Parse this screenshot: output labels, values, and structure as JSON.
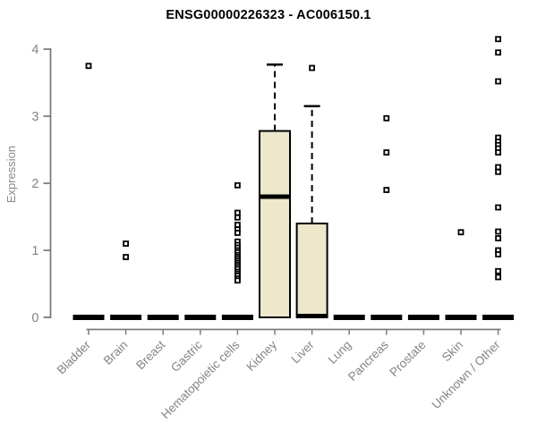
{
  "chart_data": {
    "type": "boxplot",
    "title": "ENSG00000226323 - AC006150.1",
    "ylabel": "Expression",
    "xlabel": "",
    "ylim": [
      0,
      4
    ],
    "yticks": [
      0,
      1,
      2,
      3,
      4
    ],
    "grid": false,
    "legend": "none",
    "categories": [
      "Bladder",
      "Brain",
      "Breast",
      "Gastric",
      "Hematopoietic cells",
      "Kidney",
      "Liver",
      "Lung",
      "Pancreas",
      "Prostate",
      "Skin",
      "Unknown / Other"
    ],
    "boxes": [
      {
        "category": "Bladder",
        "q1": 0,
        "median": 0,
        "q3": 0,
        "whisker_low": 0,
        "whisker_high": 0,
        "outliers": [
          3.75
        ]
      },
      {
        "category": "Brain",
        "q1": 0,
        "median": 0,
        "q3": 0,
        "whisker_low": 0,
        "whisker_high": 0,
        "outliers": [
          1.1,
          0.9
        ]
      },
      {
        "category": "Breast",
        "q1": 0,
        "median": 0,
        "q3": 0,
        "whisker_low": 0,
        "whisker_high": 0,
        "outliers": []
      },
      {
        "category": "Gastric",
        "q1": 0,
        "median": 0,
        "q3": 0,
        "whisker_low": 0,
        "whisker_high": 0,
        "outliers": []
      },
      {
        "category": "Hematopoietic cells",
        "q1": 0,
        "median": 0,
        "q3": 0,
        "whisker_low": 0,
        "whisker_high": 0,
        "outliers": [
          1.97,
          1.56,
          1.49,
          1.38,
          1.31,
          1.26,
          1.13,
          1.08,
          1.04,
          1.0,
          0.97,
          0.93,
          0.9,
          0.87,
          0.84,
          0.81,
          0.78,
          0.75,
          0.72,
          0.68,
          0.65,
          0.62,
          0.58,
          0.55
        ]
      },
      {
        "category": "Kidney",
        "q1": 0,
        "median": 1.8,
        "q3": 2.78,
        "whisker_low": 0,
        "whisker_high": 3.77,
        "outliers": []
      },
      {
        "category": "Liver",
        "q1": 0,
        "median": 0.02,
        "q3": 1.4,
        "whisker_low": 0,
        "whisker_high": 3.15,
        "outliers": [
          3.72
        ]
      },
      {
        "category": "Lung",
        "q1": 0,
        "median": 0,
        "q3": 0,
        "whisker_low": 0,
        "whisker_high": 0,
        "outliers": []
      },
      {
        "category": "Pancreas",
        "q1": 0,
        "median": 0,
        "q3": 0,
        "whisker_low": 0,
        "whisker_high": 0,
        "outliers": [
          2.97,
          2.46,
          1.9
        ]
      },
      {
        "category": "Prostate",
        "q1": 0,
        "median": 0,
        "q3": 0,
        "whisker_low": 0,
        "whisker_high": 0,
        "outliers": []
      },
      {
        "category": "Skin",
        "q1": 0,
        "median": 0,
        "q3": 0,
        "whisker_low": 0,
        "whisker_high": 0,
        "outliers": [
          1.27
        ]
      },
      {
        "category": "Unknown / Other",
        "q1": 0,
        "median": 0,
        "q3": 0,
        "whisker_low": 0,
        "whisker_high": 0,
        "outliers": [
          4.15,
          3.95,
          3.52,
          2.68,
          2.62,
          2.57,
          2.52,
          2.46,
          2.24,
          2.17,
          1.64,
          1.28,
          1.18,
          1.0,
          0.94,
          0.69,
          0.6
        ]
      }
    ],
    "colors": {
      "box_fill": "#EDE7CC",
      "box_stroke": "#000000",
      "median": "#000000",
      "outlier_stroke": "#000000",
      "outlier_fill": "#FFFFFF",
      "axis": "#7D7D7D",
      "tick_label": "#848484",
      "title": "#000000"
    }
  }
}
